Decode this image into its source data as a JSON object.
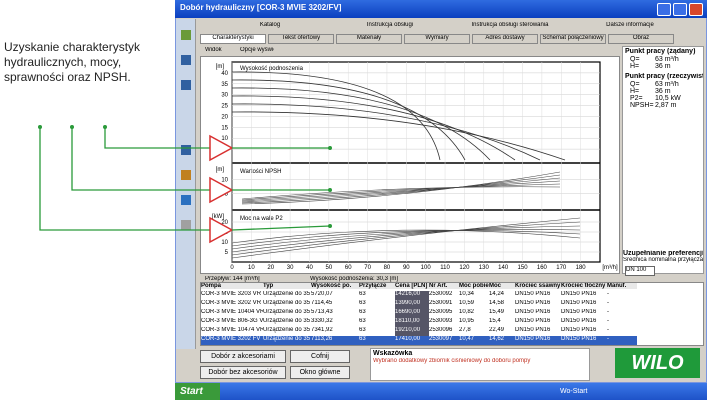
{
  "annotation": {
    "text": "Uzyskanie charakterystyk hydraulicznych, mocy, sprawności oraz NPSH."
  },
  "window": {
    "title": "Dobór hydrauliczny [COR-3 MVIE 3202/FV]"
  },
  "tabs_top": [
    "Katalog",
    "Instrukcja obsługi",
    "Instrukcja obsługi sterowania",
    "Dalsze informacje"
  ],
  "tabs_bottom": [
    "Charakterystyki",
    "Tekst ofertowy",
    "Materiały",
    "Wymiary",
    "Adres dostawy",
    "Schemat połączeniowy",
    "Obraz"
  ],
  "toolbar": [
    "Widok",
    "Opcje wyświetl."
  ],
  "chart": {
    "xlim": [
      0,
      190
    ],
    "xticks": [
      0,
      10,
      20,
      30,
      40,
      50,
      60,
      70,
      80,
      90,
      100,
      110,
      120,
      130,
      140,
      150,
      160,
      170,
      180
    ],
    "x_unit": "[m³/h]",
    "panels": [
      {
        "label": "Wysokość podnoszenia",
        "unit": "[m]",
        "ylim": [
          0,
          45
        ],
        "yticks": [
          5,
          10,
          15,
          20,
          25,
          30,
          35,
          40
        ]
      },
      {
        "label": "Wartości NPSH",
        "unit": "[m]",
        "ylim": [
          0,
          15
        ],
        "yticks": [
          5,
          10
        ]
      },
      {
        "label": "Moc na wale P2",
        "unit": "[kW]",
        "ylim": [
          0,
          25
        ],
        "yticks": [
          5,
          10,
          15,
          20
        ]
      }
    ],
    "flow": "Przepływ: 144 [m³/h]",
    "head": "Wysokość podnoszenia: 30,3 [m]"
  },
  "duty": {
    "required_title": "Punkt pracy (żądany)",
    "required": [
      [
        "Q=",
        "63 m³/h"
      ],
      [
        "H=",
        "36 m"
      ]
    ],
    "actual_title": "Punkt pracy (rzeczywisty)",
    "actual": [
      [
        "Q=",
        "63 m³/h"
      ],
      [
        "H=",
        "36 m"
      ],
      [
        "P2=",
        "10,5 kW"
      ],
      [
        "NPSH=",
        "2,87 m"
      ]
    ],
    "filter_title": "Uzupełnianie preferencji",
    "filter_label": "Średnica nominalna przyłącza",
    "filter_value": "DN 100"
  },
  "table": {
    "headers": [
      "Pompa",
      "Typ",
      "Wysokość po.",
      "Przyłącze",
      "Cena [PLN]",
      "Nr Art.",
      "Moc pobier.",
      "Moc",
      "Króciec ssawny",
      "Króciec tłoczny",
      "Manuf."
    ],
    "rows": [
      [
        "COR-3 MVIE 3203 VR",
        "Urządzenie do 35",
        "5720,07",
        "63",
        "14216,00",
        "2530092",
        "10,34",
        "14,24",
        "DN150 PN16",
        "DN150 PN16",
        "-"
      ],
      [
        "COR-3 MVIE 3202 VR",
        "Urządzenie do 35",
        "7114,45",
        "63",
        "13990,00",
        "2530091",
        "10,59",
        "14,58",
        "DN150 PN16",
        "DN150 PN16",
        "-"
      ],
      [
        "COR-3 MVIE 10404 VR",
        "Urządzenie do 35",
        "5713,43",
        "63",
        "16690,00",
        "2530095",
        "10,82",
        "15,49",
        "DN150 PN16",
        "DN150 PN16",
        "-"
      ],
      [
        "COR-3 MVIE 806-3G VR",
        "Urządzenie do 35",
        "3330,32",
        "63",
        "18110,00",
        "2530093",
        "10,95",
        "15,4",
        "DN150 PN16",
        "DN150 PN16",
        "-"
      ],
      [
        "COR-3 MVIE 10474 VR",
        "Urządzenie do 35",
        "7341,92",
        "63",
        "19210,00",
        "2530096",
        "27,8",
        "22,49",
        "DN150 PN16",
        "DN150 PN16",
        "-"
      ],
      [
        "COR-3 MVIE 3202 FV",
        "Urządzenie do 35",
        "7113,26",
        "63",
        "17410,00",
        "2530097",
        "10,47",
        "14,62",
        "DN150 PN16",
        "DN150 PN16",
        "-"
      ]
    ]
  },
  "buttons": [
    "Dobór z akcesoriami",
    "Cofnij",
    "Dobór bez akcesoriów",
    "Okno główne"
  ],
  "hint": {
    "title": "Wskazówka",
    "text": "Wybrano dodatkowy zbiornik ciśnieniowy do doboru pompy"
  },
  "logo": "WILO",
  "taskbar": {
    "start": "Start",
    "clock": "Wo-Start"
  }
}
